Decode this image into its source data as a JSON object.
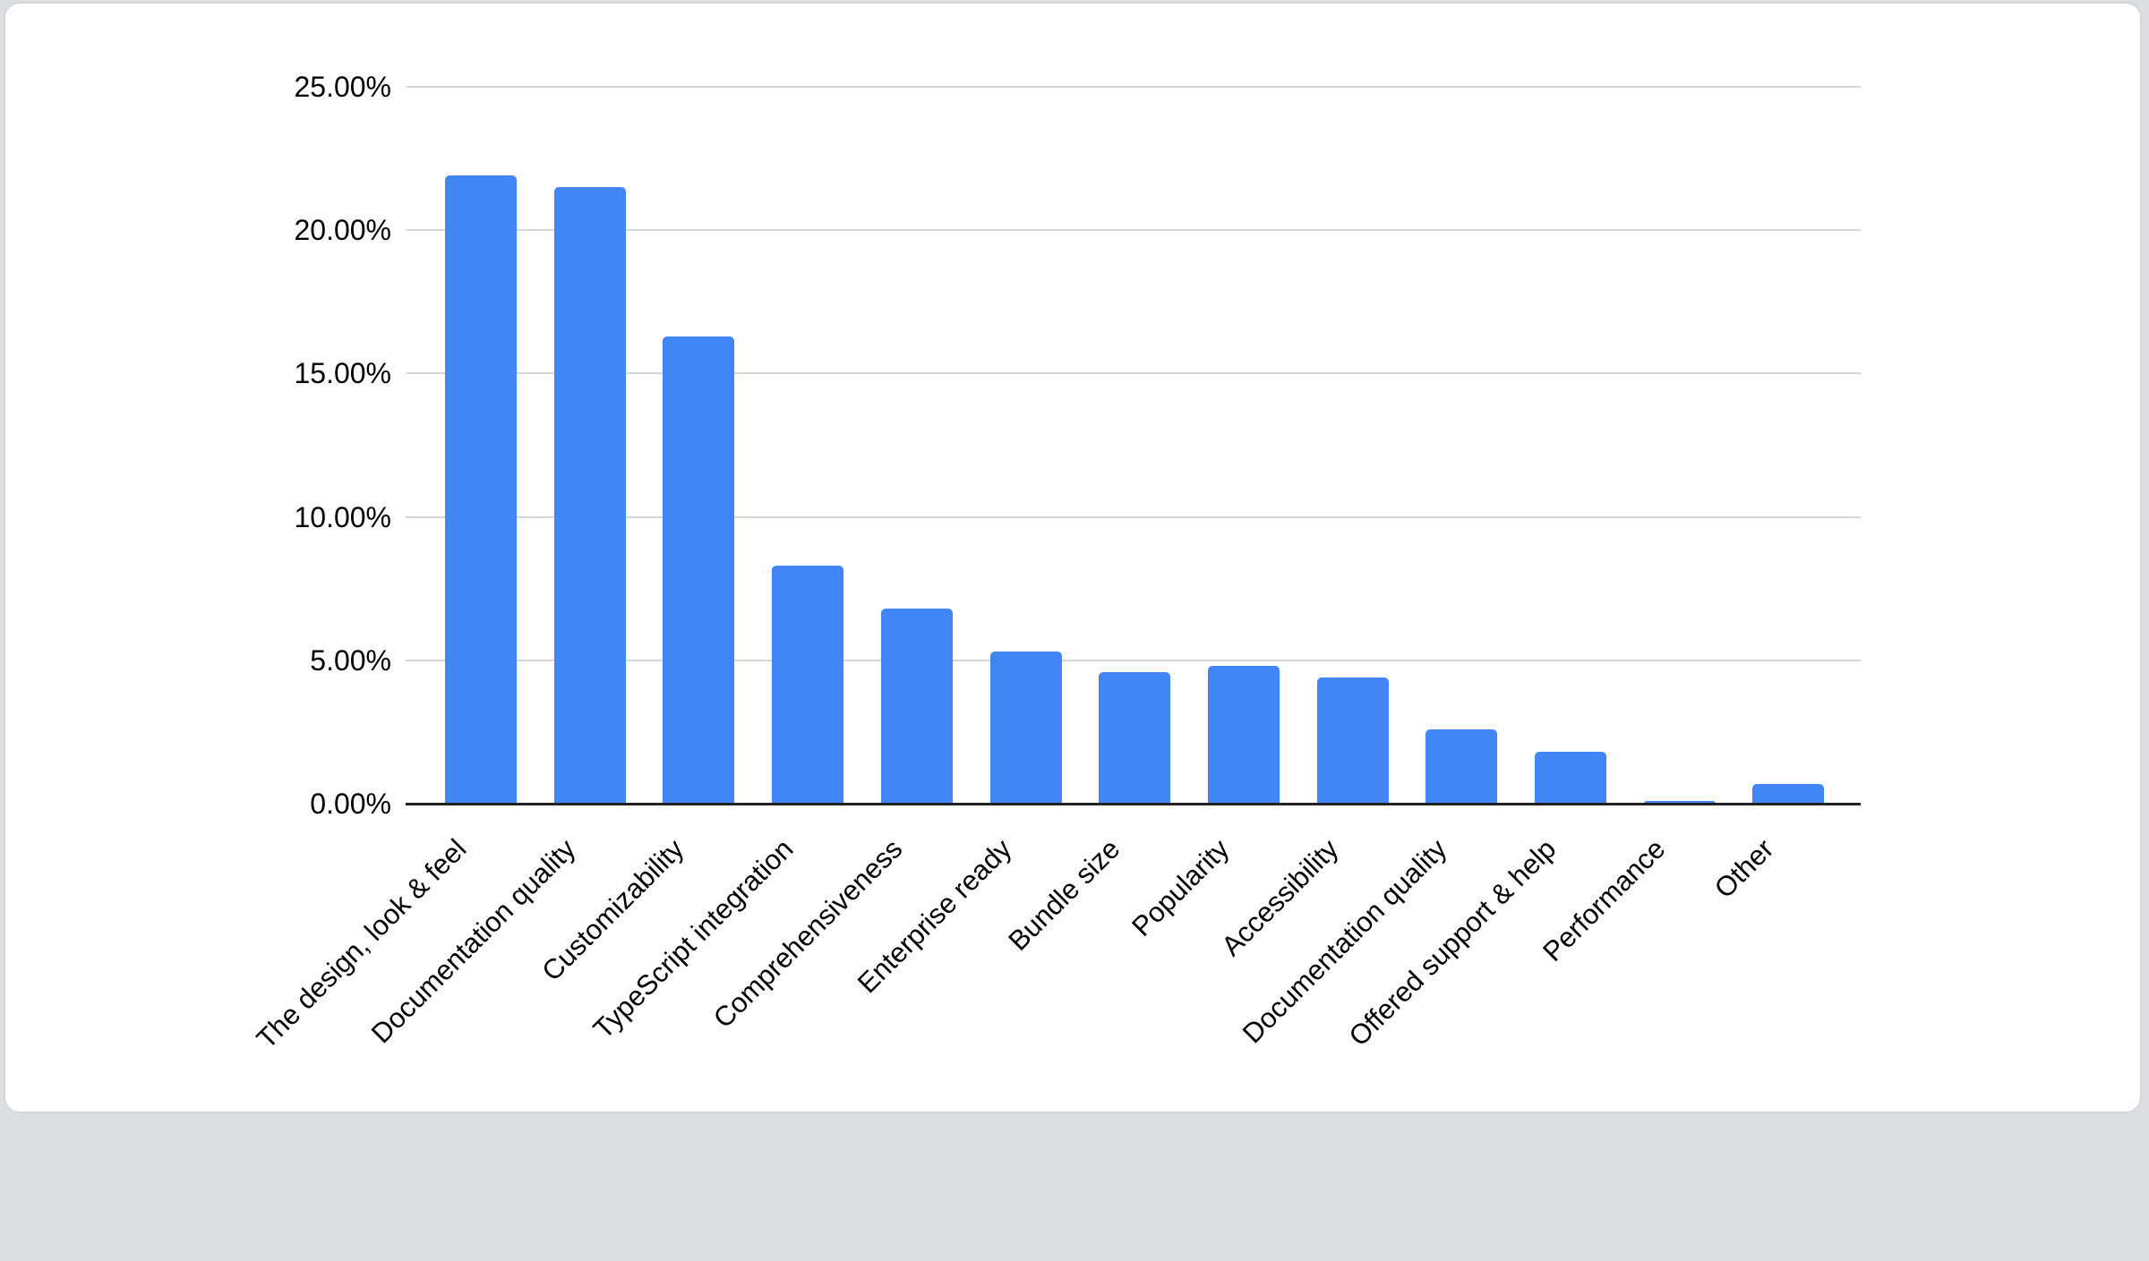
{
  "chart_data": {
    "type": "bar",
    "title": "",
    "xlabel": "",
    "ylabel": "",
    "categories": [
      "The design, look & feel",
      "Documentation quality",
      "Customizability",
      "TypeScript integration",
      "Comprehensiveness",
      "Enterprise ready",
      "Bundle size",
      "Popularity",
      "Accessibility",
      "Documentation quality",
      "Offered support & help",
      "Performance",
      "Other"
    ],
    "values": [
      21.9,
      21.5,
      16.3,
      8.3,
      6.8,
      5.3,
      4.6,
      4.8,
      4.4,
      2.6,
      1.8,
      0.1,
      0.7
    ],
    "value_unit": "percent",
    "ylim": [
      0,
      25
    ],
    "yticks": [
      0,
      5,
      10,
      15,
      20,
      25
    ],
    "ytick_labels": [
      "0.00%",
      "5.00%",
      "10.00%",
      "15.00%",
      "20.00%",
      "25.00%"
    ],
    "grid": true,
    "legend": "none",
    "xtick_rotation_deg": 45
  },
  "colors": {
    "bar": "#4285f4",
    "gridline": "#d7d7d7",
    "axis_line": "#212121",
    "label_text": "#000000",
    "card_background": "#ffffff",
    "card_border": "#d4d7da",
    "page_background": "#dcdee1"
  }
}
